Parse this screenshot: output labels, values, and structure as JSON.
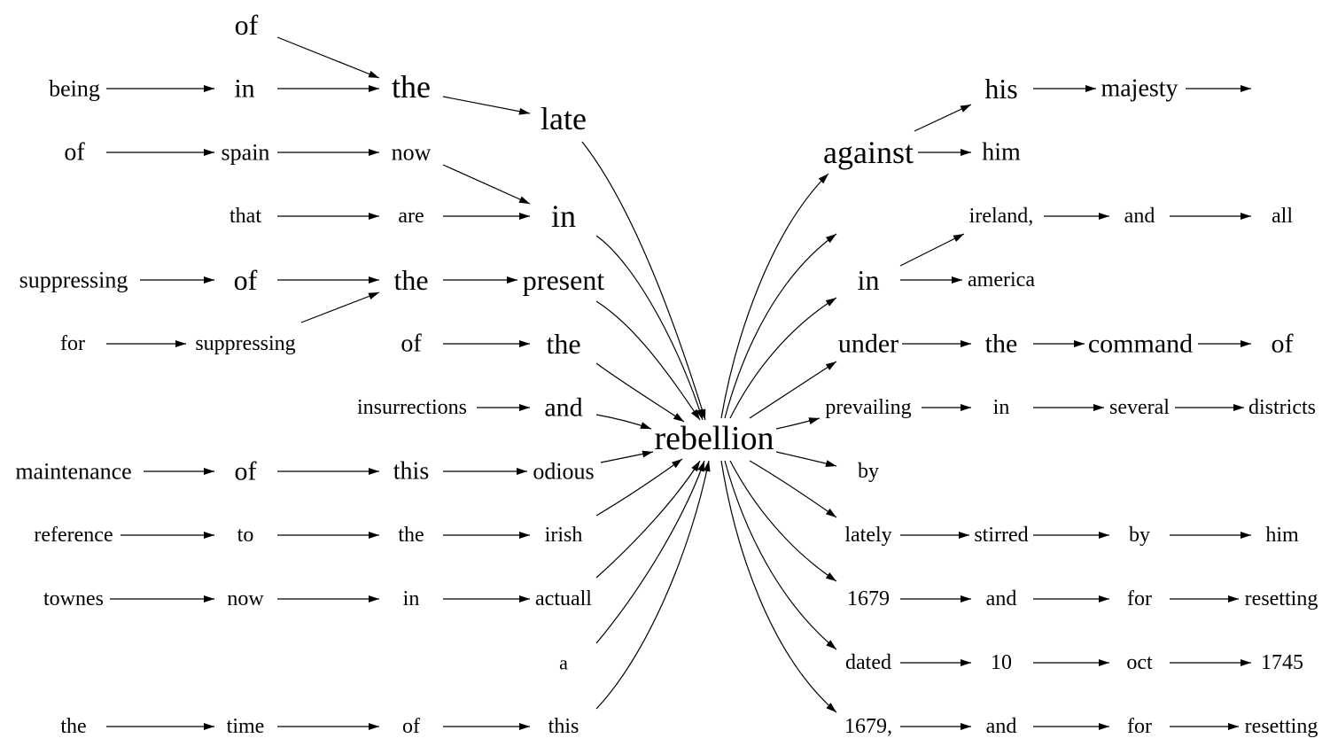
{
  "center": "rebellion",
  "left_words": [
    "of",
    "being",
    "in",
    "the",
    "late",
    "of",
    "spain",
    "now",
    "that",
    "are",
    "in",
    "suppressing",
    "of",
    "the",
    "present",
    "for",
    "suppressing",
    "of",
    "the",
    "insurrections",
    "and",
    "maintenance",
    "of",
    "this",
    "odious",
    "reference",
    "to",
    "the",
    "irish",
    "townes",
    "now",
    "in",
    "actuall",
    "a",
    "the",
    "time",
    "of",
    "this"
  ],
  "right_words": [
    "his",
    "majesty",
    "against",
    "him",
    "ireland,",
    "and",
    "all",
    "in",
    "america",
    "under",
    "the",
    "command",
    "of",
    "prevailing",
    "in",
    "several",
    "districts",
    "by",
    "lately",
    "stirred",
    "by",
    "him",
    "1679",
    "and",
    "for",
    "resetting",
    "dated",
    "10",
    "oct",
    "1745",
    "1679,",
    "and",
    "for",
    "resetting"
  ]
}
